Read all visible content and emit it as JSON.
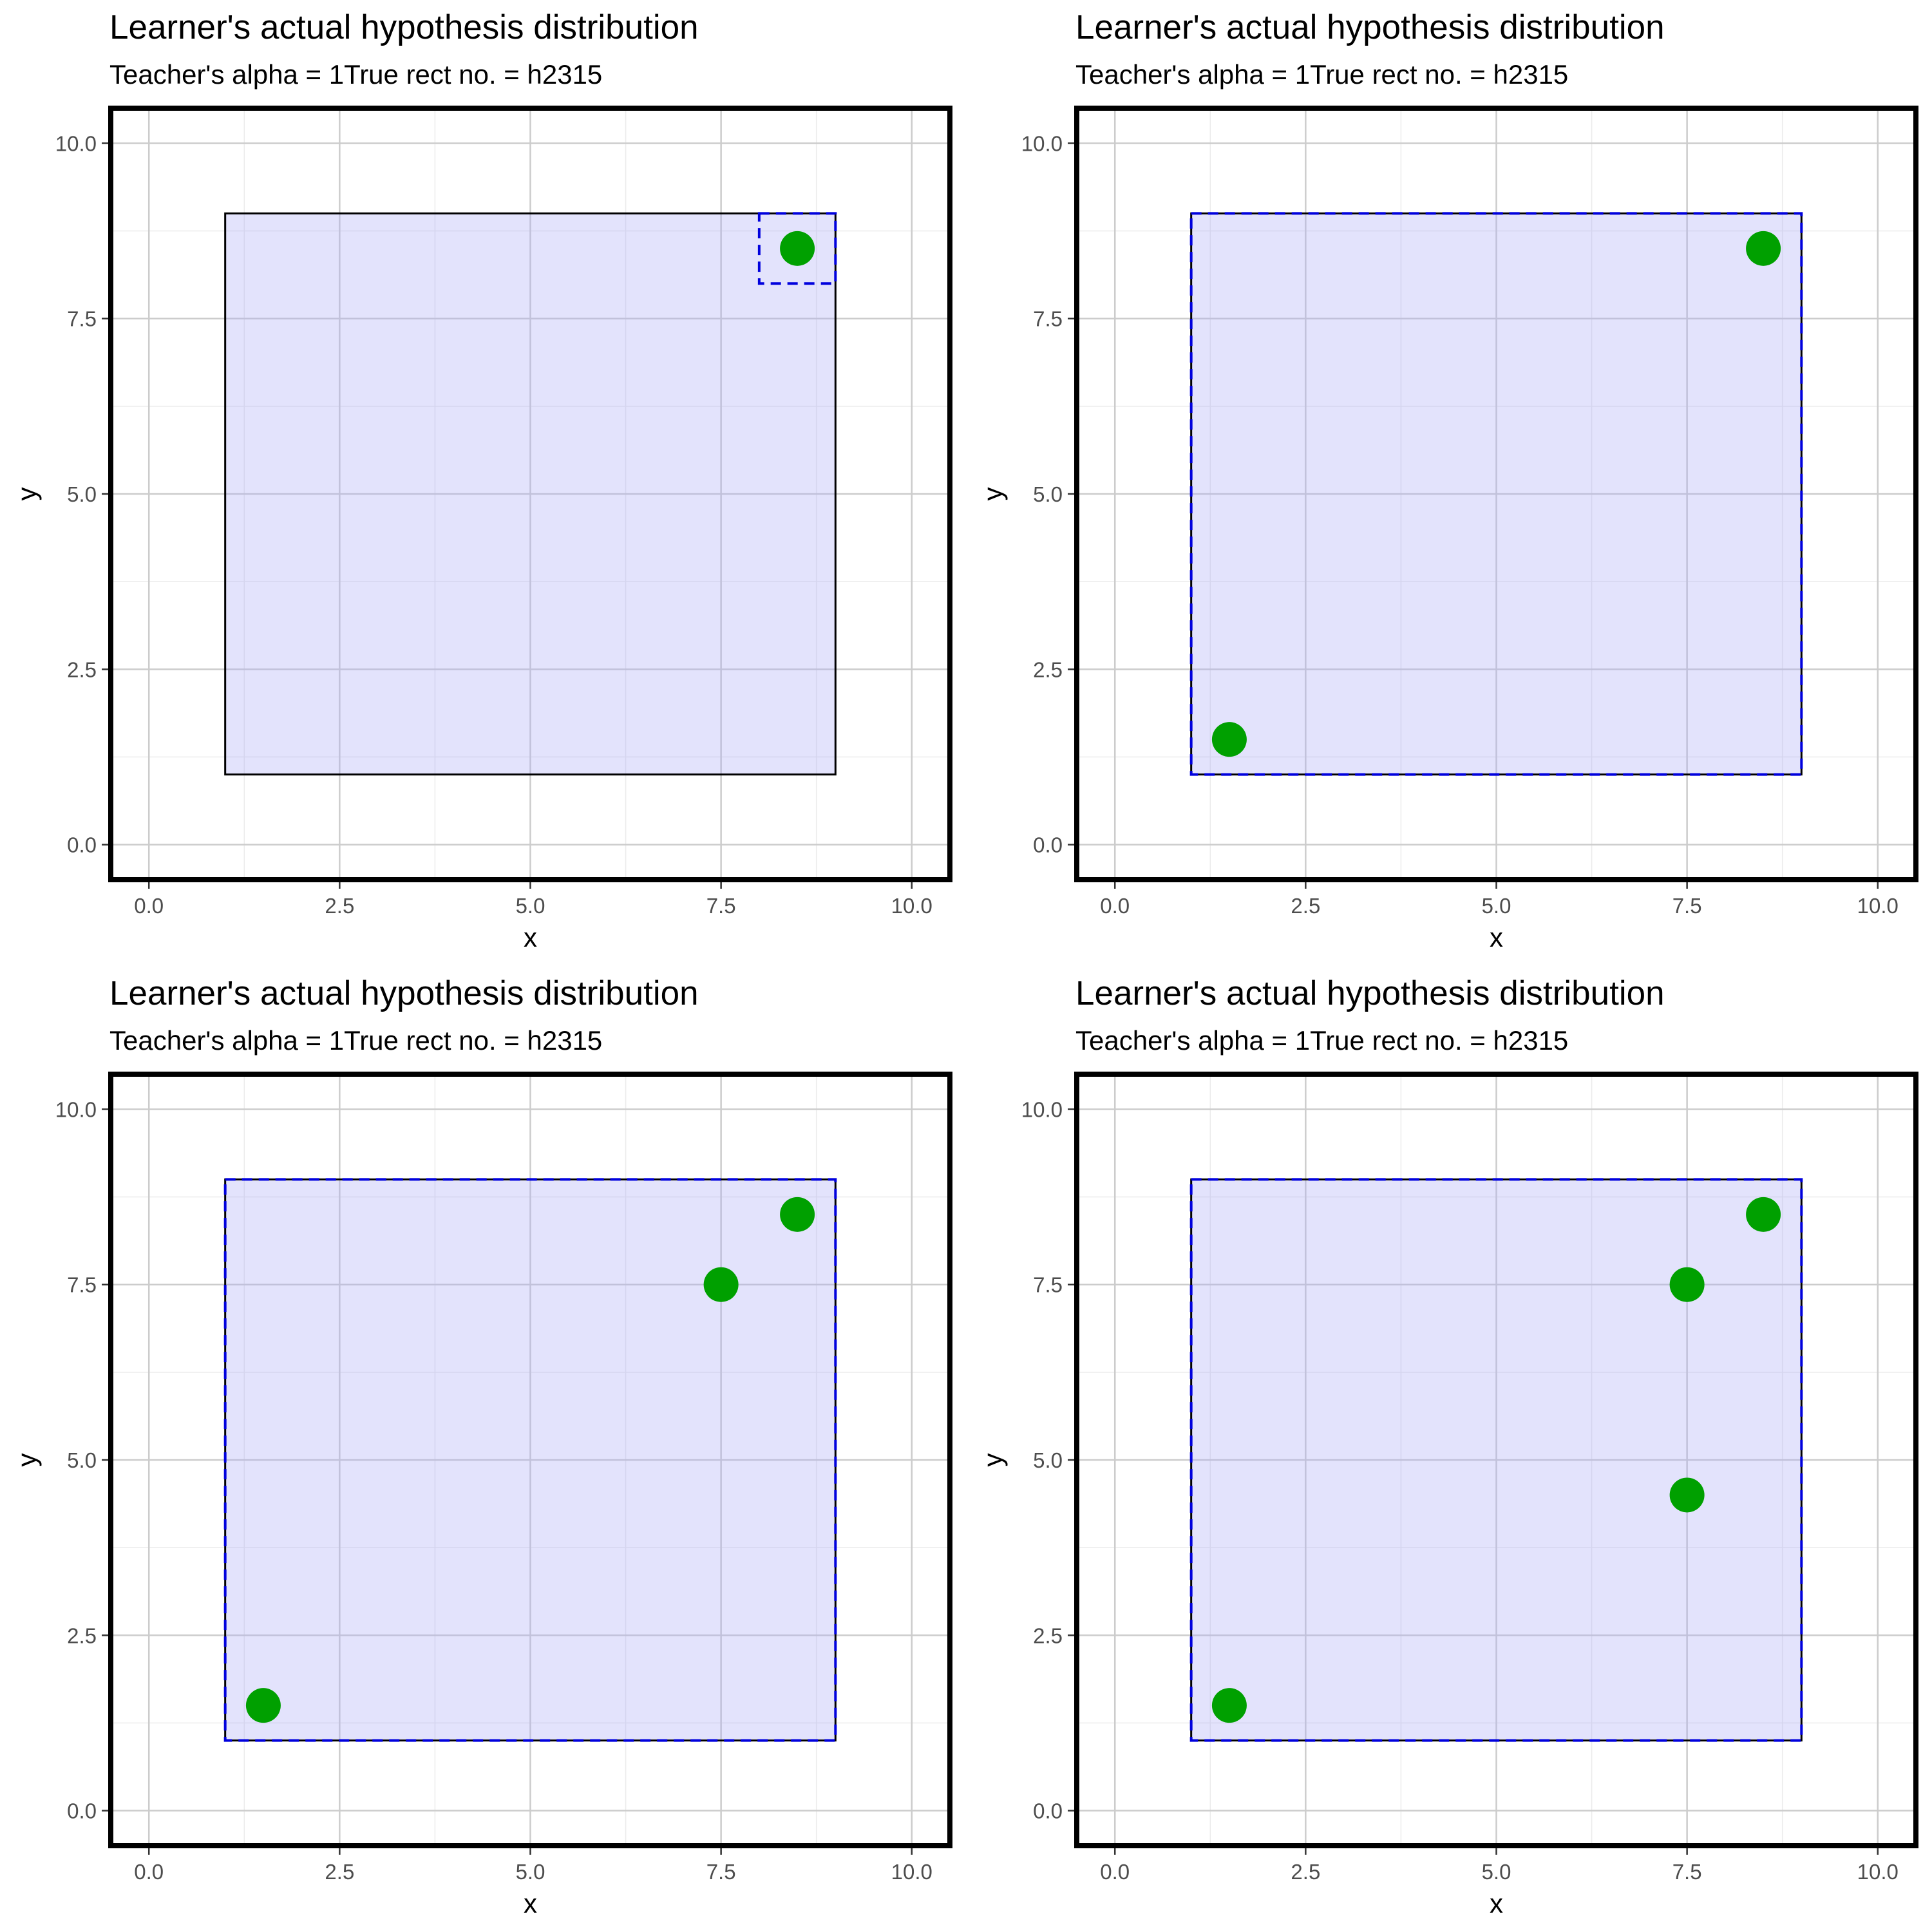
{
  "chart_data": [
    {
      "type": "scatter",
      "title": "Learner's actual hypothesis distribution",
      "subtitle": "Teacher's alpha = 1True rect no. = h2315",
      "xlabel": "x",
      "ylabel": "y",
      "xlim": [
        -0.5,
        10.5
      ],
      "ylim": [
        -0.5,
        10.5
      ],
      "xticks": [
        "0.0",
        "2.5",
        "5.0",
        "7.5",
        "10.0"
      ],
      "yticks": [
        "0.0",
        "2.5",
        "5.0",
        "7.5",
        "10.0"
      ],
      "grid": true,
      "true_rect": {
        "x1": 1,
        "x2": 9,
        "y1": 1,
        "y2": 9,
        "fill": "#e1e1fb",
        "stroke": "#000000"
      },
      "hypothesis_rect": {
        "x1": 8,
        "x2": 9,
        "y1": 8,
        "y2": 9,
        "stroke": "#0000dd",
        "dash": true
      },
      "points": [
        {
          "x": 8.5,
          "y": 8.5
        }
      ],
      "point_color": "#00a000"
    },
    {
      "type": "scatter",
      "title": "Learner's actual hypothesis distribution",
      "subtitle": "Teacher's alpha = 1True rect no. = h2315",
      "xlabel": "x",
      "ylabel": "y",
      "xlim": [
        -0.5,
        10.5
      ],
      "ylim": [
        -0.5,
        10.5
      ],
      "xticks": [
        "0.0",
        "2.5",
        "5.0",
        "7.5",
        "10.0"
      ],
      "yticks": [
        "0.0",
        "2.5",
        "5.0",
        "7.5",
        "10.0"
      ],
      "grid": true,
      "true_rect": {
        "x1": 1,
        "x2": 9,
        "y1": 1,
        "y2": 9,
        "fill": "#e1e1fb",
        "stroke": "#000000"
      },
      "hypothesis_rect": {
        "x1": 1,
        "x2": 9,
        "y1": 1,
        "y2": 9,
        "stroke": "#0000dd",
        "dash": true
      },
      "points": [
        {
          "x": 8.5,
          "y": 8.5
        },
        {
          "x": 1.5,
          "y": 1.5
        }
      ],
      "point_color": "#00a000"
    },
    {
      "type": "scatter",
      "title": "Learner's actual hypothesis distribution",
      "subtitle": "Teacher's alpha = 1True rect no. = h2315",
      "xlabel": "x",
      "ylabel": "y",
      "xlim": [
        -0.5,
        10.5
      ],
      "ylim": [
        -0.5,
        10.5
      ],
      "xticks": [
        "0.0",
        "2.5",
        "5.0",
        "7.5",
        "10.0"
      ],
      "yticks": [
        "0.0",
        "2.5",
        "5.0",
        "7.5",
        "10.0"
      ],
      "grid": true,
      "true_rect": {
        "x1": 1,
        "x2": 9,
        "y1": 1,
        "y2": 9,
        "fill": "#e1e1fb",
        "stroke": "#000000"
      },
      "hypothesis_rect": {
        "x1": 1,
        "x2": 9,
        "y1": 1,
        "y2": 9,
        "stroke": "#0000dd",
        "dash": true
      },
      "points": [
        {
          "x": 8.5,
          "y": 8.5
        },
        {
          "x": 7.5,
          "y": 7.5
        },
        {
          "x": 1.5,
          "y": 1.5
        }
      ],
      "point_color": "#00a000"
    },
    {
      "type": "scatter",
      "title": "Learner's actual hypothesis distribution",
      "subtitle": "Teacher's alpha = 1True rect no. = h2315",
      "xlabel": "x",
      "ylabel": "y",
      "xlim": [
        -0.5,
        10.5
      ],
      "ylim": [
        -0.5,
        10.5
      ],
      "xticks": [
        "0.0",
        "2.5",
        "5.0",
        "7.5",
        "10.0"
      ],
      "yticks": [
        "0.0",
        "2.5",
        "5.0",
        "7.5",
        "10.0"
      ],
      "grid": true,
      "true_rect": {
        "x1": 1,
        "x2": 9,
        "y1": 1,
        "y2": 9,
        "fill": "#e1e1fb",
        "stroke": "#000000"
      },
      "hypothesis_rect": {
        "x1": 1,
        "x2": 9,
        "y1": 1,
        "y2": 9,
        "stroke": "#0000dd",
        "dash": true
      },
      "points": [
        {
          "x": 8.5,
          "y": 8.5
        },
        {
          "x": 7.5,
          "y": 7.5
        },
        {
          "x": 7.5,
          "y": 4.5
        },
        {
          "x": 1.5,
          "y": 1.5
        }
      ],
      "point_color": "#00a000"
    }
  ]
}
